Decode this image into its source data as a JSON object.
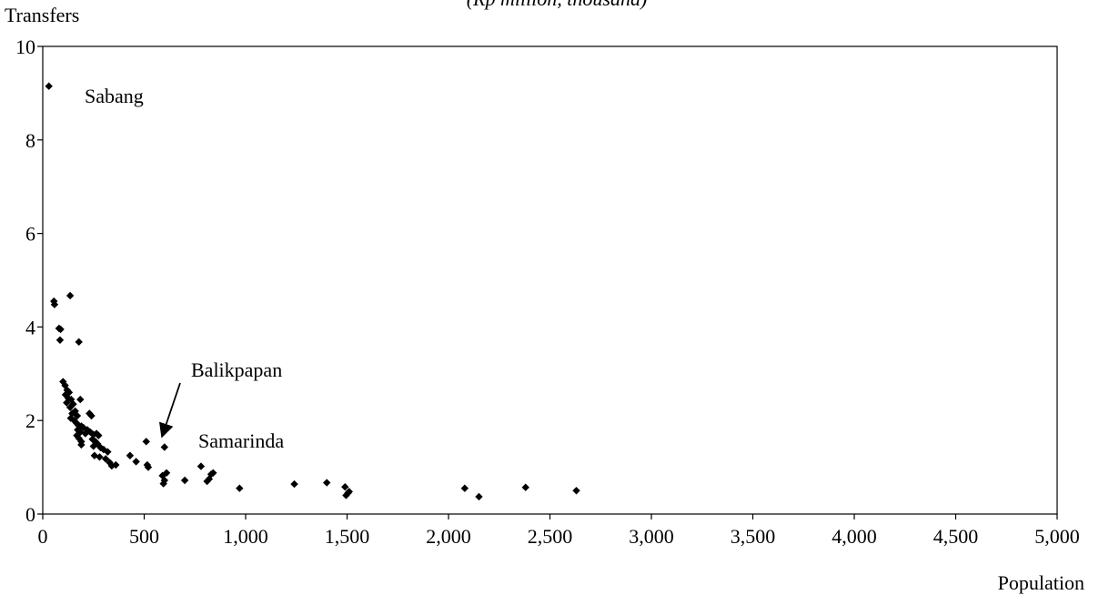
{
  "chart_data": {
    "type": "scatter",
    "subtitle": "(Rp million, thousand)",
    "xlabel": "Population",
    "ylabel": "Transfers",
    "xlim": [
      0,
      5000
    ],
    "ylim": [
      0,
      10
    ],
    "xticks": [
      0,
      500,
      1000,
      1500,
      2000,
      2500,
      3000,
      3500,
      4000,
      4500,
      5000
    ],
    "xtick_labels": [
      "0",
      "500",
      "1,000",
      "1,500",
      "2,000",
      "2,500",
      "3,000",
      "3,500",
      "4,000",
      "4,500",
      "5,000"
    ],
    "yticks": [
      0,
      2,
      4,
      6,
      8,
      10
    ],
    "ytick_labels": [
      "0",
      "2",
      "4",
      "6",
      "8",
      "10"
    ],
    "grid": false,
    "marker_color": "#000000",
    "annotations": [
      {
        "label": "Sabang",
        "x": 30,
        "y": 9.15
      },
      {
        "label": "Balikpapan",
        "x": 510,
        "y": 1.55,
        "arrow": true
      },
      {
        "label": "Samarinda",
        "x": 600,
        "y": 1.43
      }
    ],
    "series": [
      {
        "points": [
          [
            30,
            9.15
          ],
          [
            55,
            4.55
          ],
          [
            58,
            4.48
          ],
          [
            80,
            3.97
          ],
          [
            88,
            3.95
          ],
          [
            85,
            3.72
          ],
          [
            135,
            4.67
          ],
          [
            178,
            3.68
          ],
          [
            100,
            2.83
          ],
          [
            110,
            2.75
          ],
          [
            120,
            2.65
          ],
          [
            130,
            2.6
          ],
          [
            112,
            2.55
          ],
          [
            125,
            2.48
          ],
          [
            140,
            2.45
          ],
          [
            118,
            2.38
          ],
          [
            150,
            2.35
          ],
          [
            135,
            2.28
          ],
          [
            160,
            2.2
          ],
          [
            145,
            2.15
          ],
          [
            170,
            2.1
          ],
          [
            138,
            2.05
          ],
          [
            155,
            2.0
          ],
          [
            185,
            2.45
          ],
          [
            165,
            1.95
          ],
          [
            175,
            1.9
          ],
          [
            190,
            1.88
          ],
          [
            200,
            1.85
          ],
          [
            172,
            1.8
          ],
          [
            185,
            1.75
          ],
          [
            210,
            1.72
          ],
          [
            168,
            1.68
          ],
          [
            178,
            1.62
          ],
          [
            190,
            1.55
          ],
          [
            230,
            2.15
          ],
          [
            240,
            2.1
          ],
          [
            220,
            1.8
          ],
          [
            235,
            1.75
          ],
          [
            250,
            1.7
          ],
          [
            265,
            1.72
          ],
          [
            275,
            1.68
          ],
          [
            245,
            1.6
          ],
          [
            260,
            1.55
          ],
          [
            270,
            1.5
          ],
          [
            250,
            1.45
          ],
          [
            285,
            1.42
          ],
          [
            300,
            1.38
          ],
          [
            320,
            1.33
          ],
          [
            255,
            1.25
          ],
          [
            280,
            1.22
          ],
          [
            310,
            1.18
          ],
          [
            330,
            1.1
          ],
          [
            360,
            1.05
          ],
          [
            340,
            1.03
          ],
          [
            190,
            1.48
          ],
          [
            430,
            1.25
          ],
          [
            460,
            1.12
          ],
          [
            515,
            1.05
          ],
          [
            520,
            1.0
          ],
          [
            510,
            1.55
          ],
          [
            600,
            1.43
          ],
          [
            590,
            0.82
          ],
          [
            610,
            0.88
          ],
          [
            600,
            0.72
          ],
          [
            595,
            0.65
          ],
          [
            700,
            0.72
          ],
          [
            780,
            1.02
          ],
          [
            820,
            0.75
          ],
          [
            810,
            0.7
          ],
          [
            840,
            0.88
          ],
          [
            830,
            0.85
          ],
          [
            970,
            0.55
          ],
          [
            1240,
            0.64
          ],
          [
            1400,
            0.67
          ],
          [
            1490,
            0.58
          ],
          [
            1510,
            0.48
          ],
          [
            1495,
            0.4
          ],
          [
            1505,
            0.45
          ],
          [
            2080,
            0.55
          ],
          [
            2150,
            0.37
          ],
          [
            2380,
            0.57
          ],
          [
            2630,
            0.5
          ]
        ]
      }
    ]
  }
}
